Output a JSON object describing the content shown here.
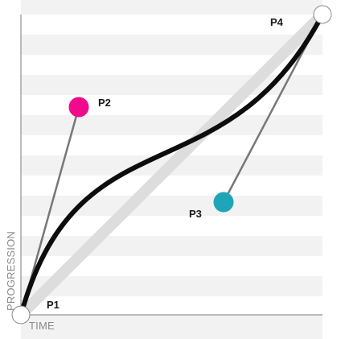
{
  "axes": {
    "x_label": "TIME",
    "y_label": "PROGRESSION"
  },
  "points": {
    "p1": {
      "label": "P1"
    },
    "p2": {
      "label": "P2"
    },
    "p3": {
      "label": "P3"
    },
    "p4": {
      "label": "P4"
    }
  },
  "colors": {
    "stripe": "#f2f2f2",
    "background": "#ffffff",
    "axis": "#7a7a7a",
    "curve": "#0d0d0d",
    "linear_reference": "#dddddd",
    "handle_line": "#777777",
    "p1_fill": "#ffffff",
    "p2_fill": "#ef0b8c",
    "p3_fill": "#1ea6b8",
    "p4_fill": "#ffffff",
    "endpoint_stroke": "#8a8a8a"
  }
}
